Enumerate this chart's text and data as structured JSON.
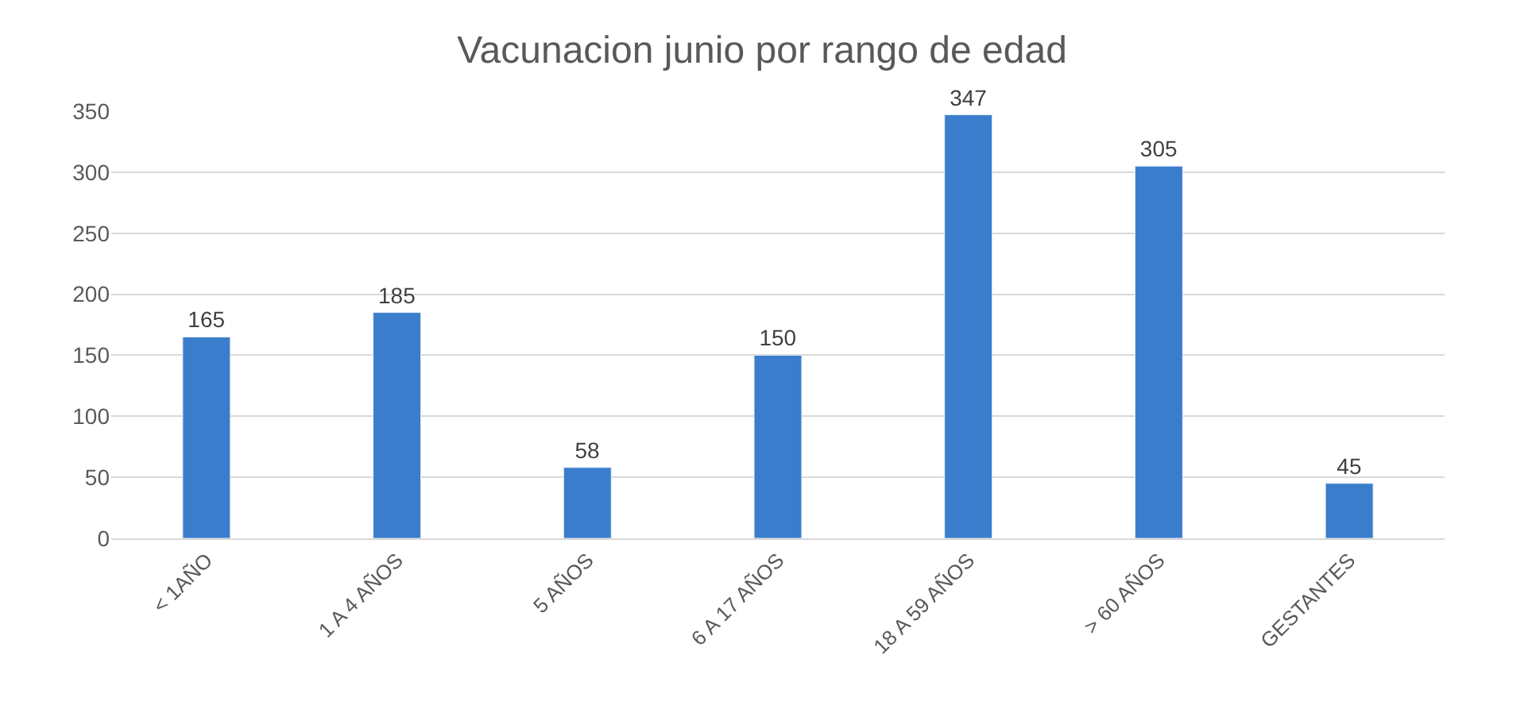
{
  "chart_data": {
    "type": "bar",
    "title": "Vacunacion junio por rango de edad",
    "categories": [
      "< 1AÑO",
      "1 A 4 AÑOS",
      "5 AÑOS",
      "6 A 17 AÑOS",
      "18 A 59 AÑOS",
      "> 60 AÑOS",
      "GESTANTES"
    ],
    "values": [
      165,
      185,
      58,
      150,
      347,
      305,
      45
    ],
    "color": "#3a7dcc",
    "ylim": [
      0,
      350
    ],
    "yticks": [
      0,
      50,
      100,
      150,
      200,
      250,
      300,
      350
    ],
    "grid": "y",
    "data_labels": true
  }
}
